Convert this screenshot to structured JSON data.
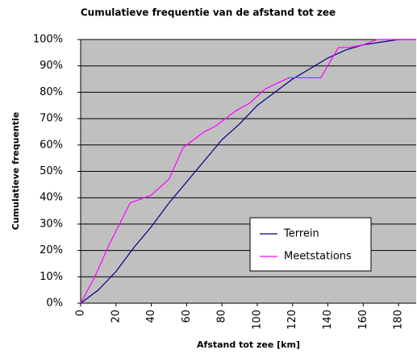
{
  "chart_data": {
    "type": "line",
    "title": "Cumulatieve frequentie van de afstand tot zee",
    "xlabel": "Afstand tot zee [km]",
    "ylabel": "Cumulatieve frequentie",
    "xlim": [
      0,
      190
    ],
    "xticks": [
      0,
      20,
      40,
      60,
      80,
      100,
      120,
      140,
      160,
      180
    ],
    "ylim": [
      0,
      100
    ],
    "yticks": [
      {
        "value": 0,
        "label": "0%"
      },
      {
        "value": 10,
        "label": "10%"
      },
      {
        "value": 20,
        "label": "20%"
      },
      {
        "value": 30,
        "label": "30%"
      },
      {
        "value": 40,
        "label": "40%"
      },
      {
        "value": 50,
        "label": "50%"
      },
      {
        "value": 60,
        "label": "60%"
      },
      {
        "value": 70,
        "label": "70%"
      },
      {
        "value": 80,
        "label": "80%"
      },
      {
        "value": 90,
        "label": "90%"
      },
      {
        "value": 100,
        "label": "100%"
      }
    ],
    "grid": true,
    "background": "#c0c0c0",
    "legend": "lower right",
    "series": [
      {
        "name": "Terrein",
        "color": "#000080",
        "x": [
          0,
          10,
          20,
          30,
          40,
          50,
          60,
          70,
          80,
          90,
          100,
          110,
          120,
          130,
          140,
          150,
          160,
          170,
          180,
          190
        ],
        "values": [
          0,
          5,
          12,
          21,
          29,
          38,
          46,
          54,
          62,
          68,
          75,
          80,
          85,
          89,
          93,
          96,
          98,
          99,
          100,
          100
        ]
      },
      {
        "name": "Meetstations",
        "color": "#ff00ff",
        "x": [
          0,
          8,
          16,
          22,
          28,
          40,
          50,
          58,
          64,
          70,
          76,
          82,
          88,
          96,
          104,
          110,
          118,
          136,
          146,
          152,
          160,
          168,
          190
        ],
        "values": [
          0,
          10,
          22,
          30,
          38,
          41,
          47,
          59,
          62,
          65,
          67,
          70,
          73,
          76,
          81,
          83,
          85.5,
          85.5,
          97,
          97,
          98,
          100,
          100
        ]
      }
    ]
  }
}
